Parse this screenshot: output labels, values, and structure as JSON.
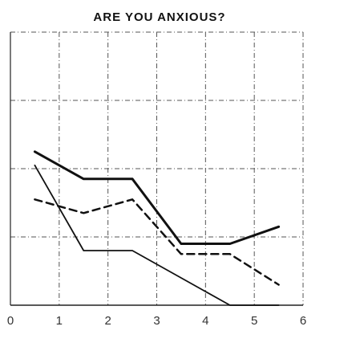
{
  "chart_data": {
    "type": "line",
    "title": "ARE YOU ANXIOUS?",
    "xlabel": "",
    "ylabel": "",
    "xlim": [
      0,
      6
    ],
    "ylim": [
      0,
      4
    ],
    "x_ticks": [
      "0",
      "1",
      "2",
      "3",
      "4",
      "5",
      "6"
    ],
    "grid": true,
    "grid_style": "dash-dot",
    "y_grid_lines": 4,
    "legend": "none",
    "colors": {
      "ink": "#111111",
      "grid": "#555555",
      "background": "#ffffff"
    },
    "series": [
      {
        "style": "thick-solid",
        "x": [
          0.5,
          1.5,
          2.5,
          3.5,
          4.5,
          5.5
        ],
        "y": [
          2.25,
          1.85,
          1.85,
          0.9,
          0.9,
          1.15
        ]
      },
      {
        "style": "dashed",
        "x": [
          0.5,
          1.5,
          2.5,
          3.5,
          4.5,
          5.5
        ],
        "y": [
          1.55,
          1.35,
          1.55,
          0.75,
          0.75,
          0.3
        ]
      },
      {
        "style": "thin-solid",
        "x": [
          0.5,
          1.5,
          2.5,
          4.5,
          5.5
        ],
        "y": [
          2.05,
          0.8,
          0.8,
          0.0,
          0.0
        ]
      }
    ]
  }
}
